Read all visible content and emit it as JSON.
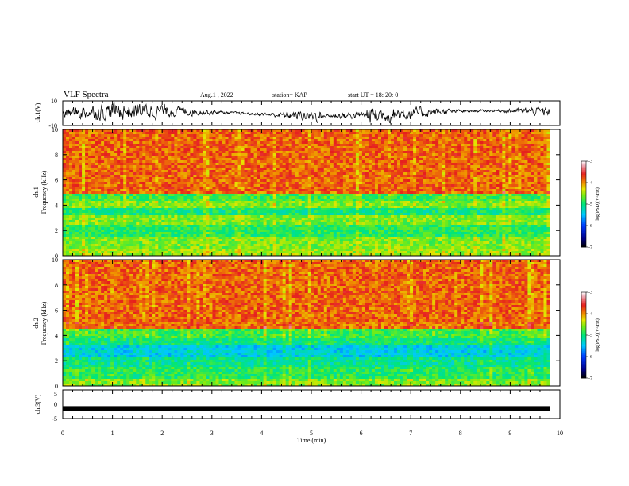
{
  "header": {
    "title": "VLF Spectra",
    "date": "Aug.1 , 2022",
    "station": "station= KAP",
    "start": "start UT = 18: 20: 0"
  },
  "chart_data": [
    {
      "type": "line",
      "name": "ch1-waveform",
      "ylabel": "ch.1(V)",
      "ylim": [
        -10,
        10
      ],
      "yticks": [
        "10",
        "-10"
      ],
      "xlim": [
        0,
        10
      ]
    },
    {
      "type": "heatmap",
      "name": "ch1-spectrogram",
      "ylabel": "ch.1 Frequency (kHz)",
      "ylabel_top": "ch.1",
      "ylabel_bottom": "Frequency (kHz)",
      "ylim": [
        0,
        10
      ],
      "yticks": [
        "0",
        "2",
        "4",
        "6",
        "8",
        "10"
      ],
      "xlim": [
        0,
        9.8
      ],
      "bands_khz": [
        {
          "from": 0.0,
          "to": 0.5,
          "level": -4.5
        },
        {
          "from": 0.5,
          "to": 1.5,
          "level": -4.6
        },
        {
          "from": 1.5,
          "to": 2.5,
          "level": -4.9
        },
        {
          "from": 2.5,
          "to": 3.3,
          "level": -4.6
        },
        {
          "from": 3.3,
          "to": 3.8,
          "level": -5.0
        },
        {
          "from": 3.8,
          "to": 4.3,
          "level": -4.6
        },
        {
          "from": 4.3,
          "to": 5.0,
          "level": -4.8
        },
        {
          "from": 5.0,
          "to": 10.0,
          "level": -3.9
        }
      ],
      "colorbar": {
        "label": "log(PSD)(V²/Hz)",
        "range": [
          -7,
          -3
        ],
        "ticks": [
          "-3",
          "-4",
          "-5",
          "-6",
          "-7"
        ]
      }
    },
    {
      "type": "heatmap",
      "name": "ch2-spectrogram",
      "ylabel": "ch.2 Frequency (kHz)",
      "ylabel_top": "ch.2",
      "ylabel_bottom": "Frequency (kHz)",
      "ylim": [
        0,
        10
      ],
      "yticks": [
        "0",
        "2",
        "4",
        "6",
        "8",
        "10"
      ],
      "xlim": [
        0,
        9.8
      ],
      "bands_khz": [
        {
          "from": 0.0,
          "to": 0.5,
          "level": -4.6
        },
        {
          "from": 0.5,
          "to": 1.6,
          "level": -4.9
        },
        {
          "from": 1.6,
          "to": 2.2,
          "level": -5.1
        },
        {
          "from": 2.2,
          "to": 3.3,
          "level": -5.4
        },
        {
          "from": 3.3,
          "to": 3.8,
          "level": -5.0
        },
        {
          "from": 3.8,
          "to": 4.6,
          "level": -4.8
        },
        {
          "from": 4.6,
          "to": 10.0,
          "level": -3.9
        }
      ],
      "colorbar": {
        "label": "log(PSD)(V²/Hz)",
        "range": [
          -7,
          -3
        ],
        "ticks": [
          "-3",
          "-4",
          "-5",
          "-6",
          "-7"
        ]
      }
    },
    {
      "type": "line",
      "name": "ch3-waveform",
      "ylabel": "ch.3(V)",
      "ylim": [
        -5,
        5
      ],
      "yticks": [
        "5",
        "0",
        "-5"
      ],
      "level_v": -1.5,
      "xlim": [
        0,
        9.8
      ]
    }
  ],
  "x_axis": {
    "label": "Time (min)",
    "range": [
      0,
      10
    ],
    "ticks": [
      "0",
      "1",
      "2",
      "3",
      "4",
      "5",
      "6",
      "7",
      "8",
      "9",
      "10"
    ]
  }
}
